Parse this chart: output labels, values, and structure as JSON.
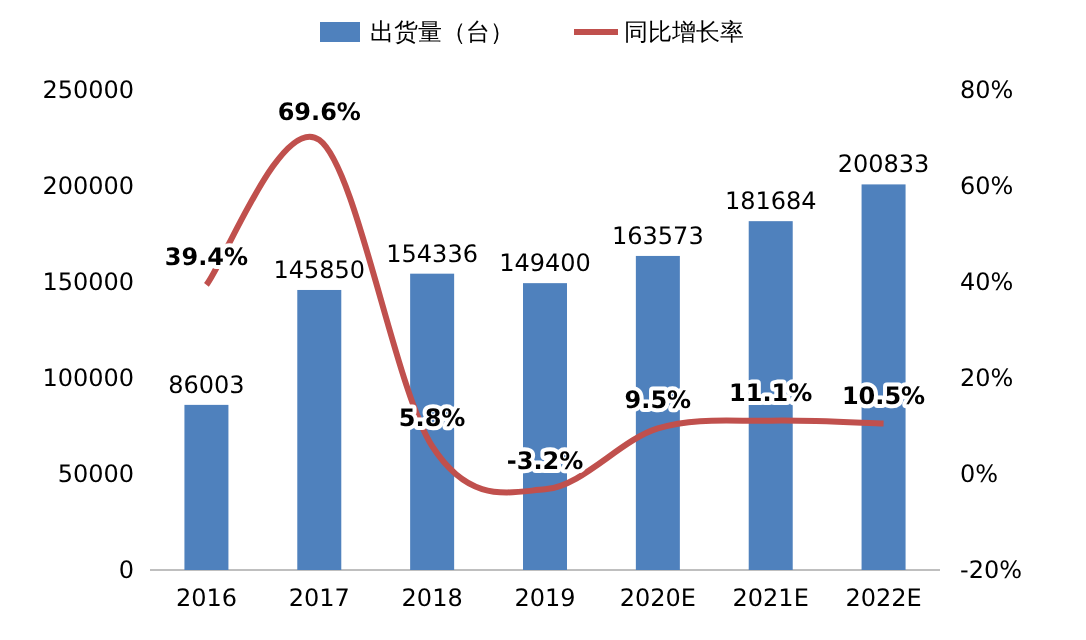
{
  "chart_data": {
    "type": "bar",
    "categories": [
      "2016",
      "2017",
      "2018",
      "2019",
      "2020E",
      "2021E",
      "2022E"
    ],
    "series": [
      {
        "name": "出货量（台）",
        "color": "#4f81bd",
        "values": [
          86003,
          145850,
          154336,
          149400,
          163573,
          181684,
          200833
        ],
        "value_labels": [
          "86003",
          "145850",
          "154336",
          "149400",
          "163573",
          "181684",
          "200833"
        ]
      },
      {
        "name": "同比增长率",
        "type": "line",
        "axis": "y2",
        "color": "#c0504d",
        "values": [
          39.4,
          69.6,
          5.8,
          -3.2,
          9.5,
          11.1,
          10.5
        ],
        "value_labels": [
          "39.4%",
          "69.6%",
          "5.8%",
          "-3.2%",
          "9.5%",
          "11.1%",
          "10.5%"
        ]
      }
    ],
    "ylim": [
      0,
      250000
    ],
    "yticks": [
      0,
      50000,
      100000,
      150000,
      200000,
      250000
    ],
    "y2lim": [
      -20,
      80
    ],
    "y2ticks": [
      {
        "value": -20,
        "label": "-20%"
      },
      {
        "value": 0,
        "label": "0%"
      },
      {
        "value": 20,
        "label": "20%"
      },
      {
        "value": 40,
        "label": "40%"
      },
      {
        "value": 60,
        "label": "60%"
      },
      {
        "value": 80,
        "label": "80%"
      }
    ],
    "legend": "top",
    "grid": false,
    "marker": "none",
    "line_style": "solid"
  }
}
